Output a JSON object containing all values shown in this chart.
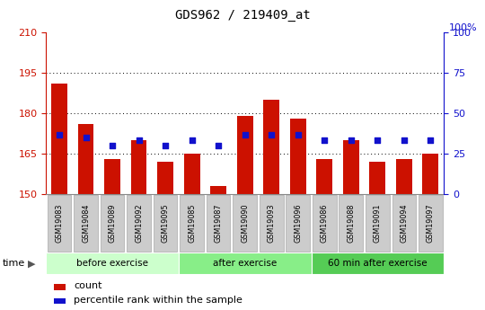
{
  "title": "GDS962 / 219409_at",
  "samples": [
    "GSM19083",
    "GSM19084",
    "GSM19089",
    "GSM19092",
    "GSM19095",
    "GSM19085",
    "GSM19087",
    "GSM19090",
    "GSM19093",
    "GSM19096",
    "GSM19086",
    "GSM19088",
    "GSM19091",
    "GSM19094",
    "GSM19097"
  ],
  "bar_values": [
    191,
    176,
    163,
    170,
    162,
    165,
    153,
    179,
    185,
    178,
    163,
    170,
    162,
    163,
    165
  ],
  "bar_bottom": 150,
  "blue_values": [
    172,
    171,
    168,
    170,
    168,
    170,
    168,
    172,
    172,
    172,
    170,
    170,
    170,
    170,
    170
  ],
  "ylim_left": [
    150,
    210
  ],
  "ylim_right": [
    0,
    100
  ],
  "yticks_left": [
    150,
    165,
    180,
    195,
    210
  ],
  "yticks_right": [
    0,
    25,
    50,
    75,
    100
  ],
  "bar_color": "#cc1100",
  "blue_color": "#1111cc",
  "grid_color": "#000000",
  "group_labels": [
    "before exercise",
    "after exercise",
    "60 min after exercise"
  ],
  "group_starts": [
    0,
    5,
    10
  ],
  "group_ends": [
    5,
    10,
    15
  ],
  "group_colors": [
    "#ccffcc",
    "#88ee88",
    "#55cc55"
  ],
  "legend_items": [
    {
      "label": "count",
      "color": "#cc1100"
    },
    {
      "label": "percentile rank within the sample",
      "color": "#1111cc"
    }
  ],
  "time_label": "time",
  "bg_color": "#ffffff",
  "tick_label_bg": "#cccccc",
  "tick_label_border": "#aaaaaa"
}
